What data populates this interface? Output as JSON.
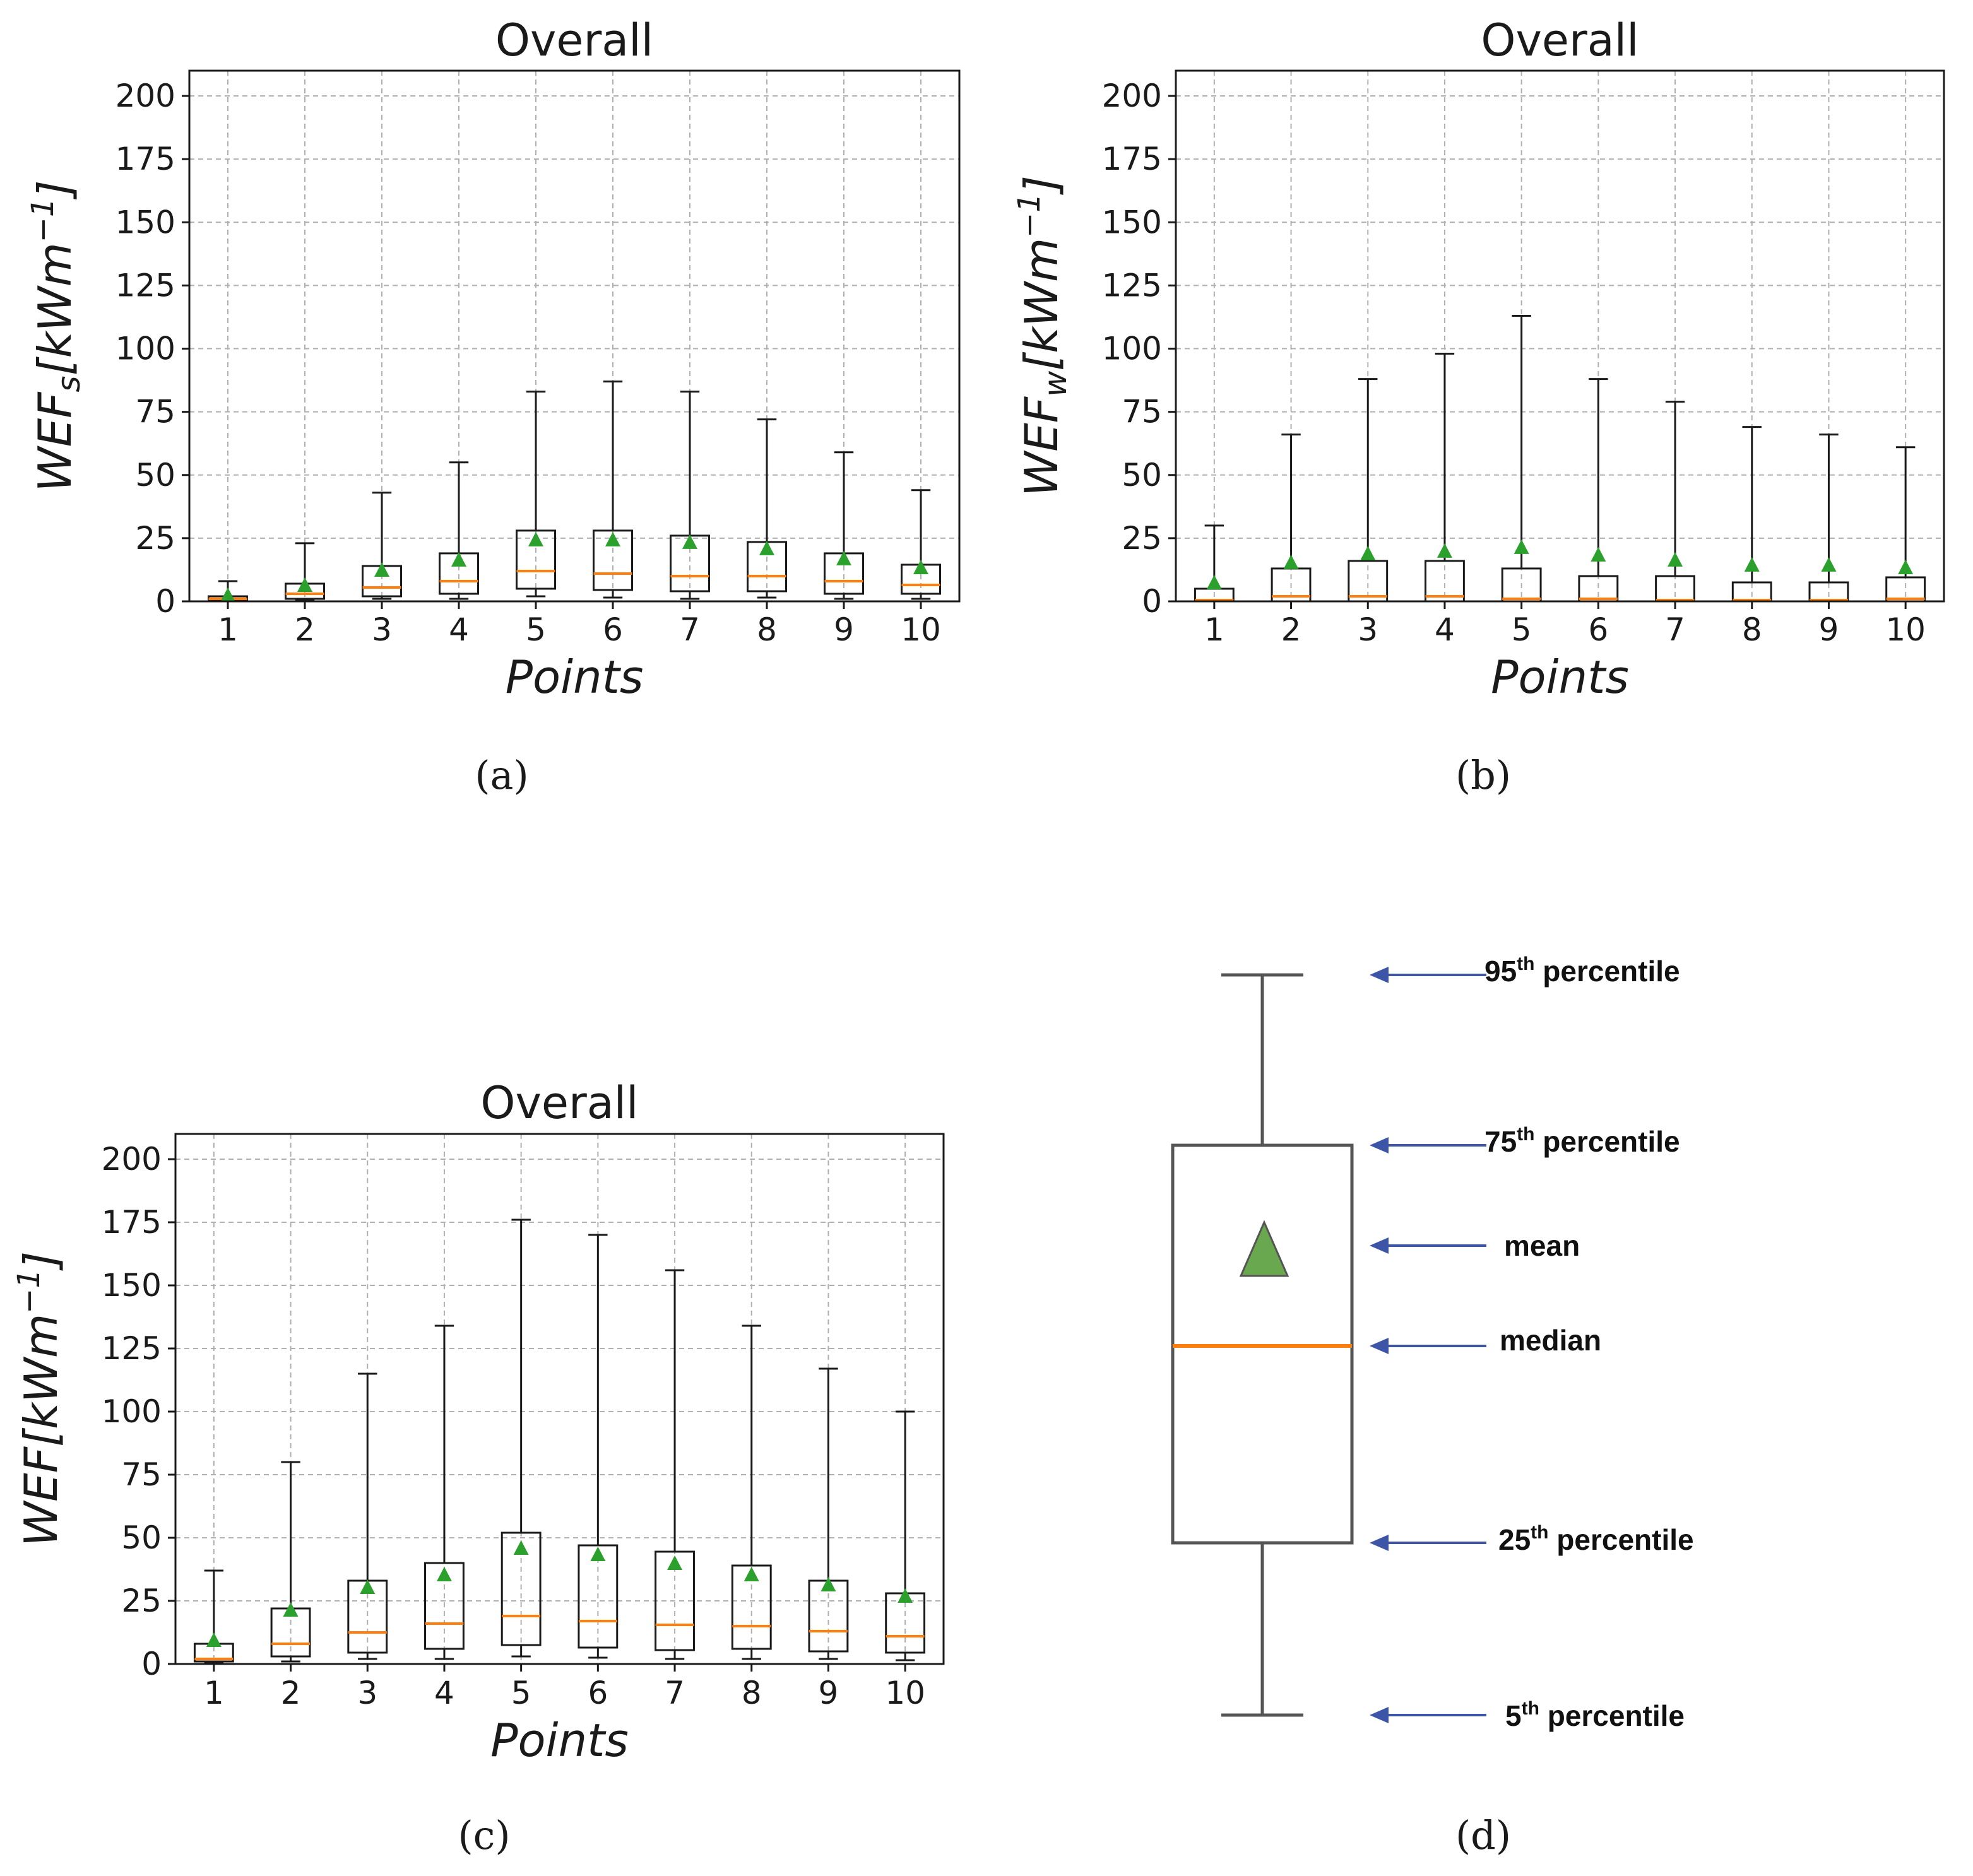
{
  "colors": {
    "median": "#ff7f0e",
    "mean": "#2ca02c",
    "legend_mean": "#6aa84f",
    "arrow": "#3d55a6",
    "box": "#1a1a1a",
    "grid": "#b0b0b0"
  },
  "chart_data": [
    {
      "id": "a",
      "type": "box",
      "title": "Overall",
      "xlabel": "Points",
      "ylabel_main": "WEF",
      "ylabel_sub": "s",
      "ylabel_unit": "[kWm",
      "ylabel_exp": "−1",
      "ylabel_close": "]",
      "caption": "(a)",
      "ylim": [
        0,
        210
      ],
      "yticks": [
        0,
        25,
        50,
        75,
        100,
        125,
        150,
        175,
        200
      ],
      "categories": [
        "1",
        "2",
        "3",
        "4",
        "5",
        "6",
        "7",
        "8",
        "9",
        "10"
      ],
      "p5": [
        0.2,
        0.5,
        1,
        1,
        2,
        1.5,
        1,
        1.5,
        1,
        1
      ],
      "q1": [
        0.5,
        1,
        2,
        3,
        5,
        4.5,
        4,
        4,
        3,
        3
      ],
      "median": [
        1,
        3,
        5.5,
        8,
        12,
        11,
        10,
        10,
        8,
        6.5
      ],
      "q3": [
        2,
        7,
        14,
        19,
        28,
        28,
        26,
        23.5,
        19,
        14.5
      ],
      "p95": [
        8,
        23,
        43,
        55,
        83,
        87,
        83,
        72,
        59,
        44
      ],
      "mean": [
        2,
        6,
        12,
        16,
        24,
        24,
        23,
        20.5,
        16.5,
        13
      ]
    },
    {
      "id": "b",
      "type": "box",
      "title": "Overall",
      "xlabel": "Points",
      "ylabel_main": "WEF",
      "ylabel_sub": "w",
      "ylabel_unit": "[kWm",
      "ylabel_exp": "−1",
      "ylabel_close": "]",
      "caption": "(b)",
      "ylim": [
        0,
        210
      ],
      "yticks": [
        0,
        25,
        50,
        75,
        100,
        125,
        150,
        175,
        200
      ],
      "categories": [
        "1",
        "2",
        "3",
        "4",
        "5",
        "6",
        "7",
        "8",
        "9",
        "10"
      ],
      "p5": [
        0,
        0,
        0,
        0,
        0,
        0,
        0,
        0,
        0,
        0
      ],
      "q1": [
        0,
        0,
        0,
        0,
        0,
        0,
        0,
        0,
        0,
        0
      ],
      "median": [
        0.5,
        2,
        2,
        2,
        1,
        1,
        0.5,
        0.5,
        0.5,
        1
      ],
      "q3": [
        5,
        13,
        16,
        16,
        13,
        10,
        10,
        7.5,
        7.5,
        9.5
      ],
      "p95": [
        30,
        66,
        88,
        98,
        113,
        88,
        79,
        69,
        66,
        61
      ],
      "mean": [
        7,
        15,
        18.5,
        19.5,
        21,
        18,
        16,
        14,
        14,
        13
      ]
    },
    {
      "id": "c",
      "type": "box",
      "title": "Overall",
      "xlabel": "Points",
      "ylabel_main": "WEF",
      "ylabel_sub": "",
      "ylabel_unit": "[kWm",
      "ylabel_exp": "−1",
      "ylabel_close": "]",
      "caption": "(c)",
      "ylim": [
        0,
        210
      ],
      "yticks": [
        0,
        25,
        50,
        75,
        100,
        125,
        150,
        175,
        200
      ],
      "categories": [
        "1",
        "2",
        "3",
        "4",
        "5",
        "6",
        "7",
        "8",
        "9",
        "10"
      ],
      "p5": [
        0.5,
        1,
        2,
        2,
        3,
        2.5,
        2,
        2,
        2,
        1.5
      ],
      "q1": [
        1,
        3,
        4.5,
        6,
        7.5,
        6.5,
        5.5,
        6,
        5,
        4.5
      ],
      "median": [
        2,
        8,
        12.5,
        16,
        19,
        17,
        15.5,
        15,
        13,
        11
      ],
      "q3": [
        8,
        22,
        33,
        40,
        52,
        47,
        44.5,
        39,
        33,
        28
      ],
      "p95": [
        37,
        80,
        115,
        134,
        176,
        170,
        156,
        134,
        117,
        100
      ],
      "mean": [
        9,
        21,
        30,
        35,
        45.5,
        43,
        39.5,
        35,
        31,
        26.5
      ]
    }
  ],
  "legend": {
    "caption": "(d)",
    "labels": [
      {
        "num": "95",
        "sup": "th",
        "text": " percentile"
      },
      {
        "num": "75",
        "sup": "th",
        "text": " percentile"
      },
      {
        "num": "",
        "sup": "",
        "text": "mean"
      },
      {
        "num": "",
        "sup": "",
        "text": "median"
      },
      {
        "num": "25",
        "sup": "th",
        "text": " percentile"
      },
      {
        "num": "5",
        "sup": "th",
        "text": " percentile"
      }
    ]
  }
}
